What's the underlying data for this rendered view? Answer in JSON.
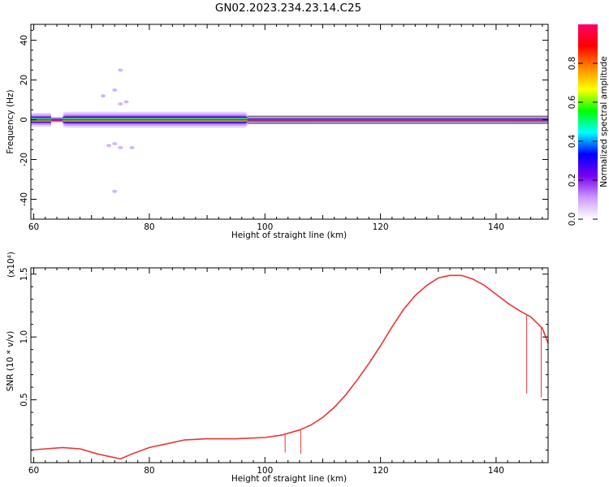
{
  "title": "GN02.2023.234.23.14.C25",
  "chart_data": [
    {
      "type": "heatmap",
      "xlabel": "Height of straight line (km)",
      "ylabel": "Frequency (Hz)",
      "xlim": [
        59.5,
        149
      ],
      "ylim": [
        -50,
        48
      ],
      "xticks": [
        60,
        80,
        100,
        120,
        140
      ],
      "yticks": [
        -40,
        -20,
        0,
        20,
        40
      ],
      "colorbar": {
        "label": "Normalized spectral amplitude",
        "range": [
          0,
          1
        ],
        "ticks": [
          "0.0",
          "0.2",
          "0.4",
          "0.6",
          "0.8"
        ],
        "colors": [
          "#ffffff",
          "#cc99ff",
          "#7700ee",
          "#0000ff",
          "#00ffff",
          "#00ff00",
          "#ffff00",
          "#ff8800",
          "#ff0000",
          "#ff0066"
        ]
      },
      "description_band": "strong carrier near 0 Hz across the full height range; broader weak sidebands (~±5 Hz) between 60 and 98 km; scattered weak points near 73-75 km",
      "band": [
        {
          "x_start": 59.5,
          "x_end": 63,
          "halfwidth_hz": 3.5,
          "peak": 0.9
        },
        {
          "x_start": 63,
          "x_end": 65,
          "halfwidth_hz": 1.5,
          "peak": 0.95
        },
        {
          "x_start": 65,
          "x_end": 97,
          "halfwidth_hz": 4,
          "peak": 0.85
        },
        {
          "x_start": 97,
          "x_end": 149,
          "halfwidth_hz": 1.8,
          "peak": 1.0
        }
      ],
      "scatter": [
        {
          "x": 75,
          "f": 25
        },
        {
          "x": 74,
          "f": 15
        },
        {
          "x": 75,
          "f": 8
        },
        {
          "x": 74,
          "f": -12
        },
        {
          "x": 75,
          "f": -14
        },
        {
          "x": 73,
          "f": -13
        },
        {
          "x": 77,
          "f": -14
        },
        {
          "x": 74,
          "f": -36
        },
        {
          "x": 72,
          "f": 12
        },
        {
          "x": 76,
          "f": 9
        }
      ]
    },
    {
      "type": "line",
      "xlabel": "Height of straight line (km)",
      "ylabel": "SNR (10 * v/v)",
      "exponent_label": "(x10⁴)",
      "xlim": [
        59.5,
        149
      ],
      "ylim": [
        0,
        1.55
      ],
      "xticks": [
        60,
        80,
        100,
        120,
        140
      ],
      "yticks": [
        "0.5",
        "1.0",
        "1.5"
      ],
      "series": [
        {
          "color": "#ee3333",
          "x": [
            59.5,
            62,
            65,
            68,
            71,
            73,
            75,
            77,
            80,
            83,
            86,
            90,
            95,
            100,
            103,
            106,
            108,
            110,
            112,
            114,
            116,
            118,
            120,
            122,
            124,
            126,
            128,
            130,
            132,
            134,
            136,
            138,
            140,
            142,
            144,
            146,
            148,
            149
          ],
          "y": [
            0.1,
            0.11,
            0.12,
            0.11,
            0.07,
            0.05,
            0.03,
            0.07,
            0.12,
            0.15,
            0.18,
            0.19,
            0.19,
            0.2,
            0.22,
            0.26,
            0.3,
            0.36,
            0.44,
            0.54,
            0.66,
            0.79,
            0.93,
            1.08,
            1.22,
            1.33,
            1.41,
            1.47,
            1.49,
            1.49,
            1.46,
            1.41,
            1.34,
            1.27,
            1.21,
            1.16,
            1.07,
            0.95
          ]
        }
      ],
      "spikes": [
        {
          "x": 103.5,
          "y": 0.08
        },
        {
          "x": 106.2,
          "y": 0.07
        },
        {
          "x": 145.3,
          "y": 0.55
        },
        {
          "x": 147.8,
          "y": 0.52
        }
      ]
    }
  ]
}
